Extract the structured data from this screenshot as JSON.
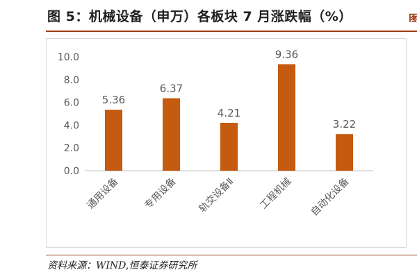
{
  "figure": {
    "title": "图 5：机械设备（申万）各板块 7 月涨跌幅（%）",
    "source": "资料来源：WIND,恒泰证券研究所"
  },
  "colors": {
    "bar": "#c55a11",
    "accent_rule": "#9e3b16",
    "axis": "#bfbfbf",
    "tick_text": "#595959"
  },
  "chart_data": {
    "type": "bar",
    "categories": [
      "通用设备",
      "专用设备",
      "轨交设备Ⅱ",
      "工程机械",
      "自动化设备"
    ],
    "values": [
      5.36,
      6.37,
      4.21,
      9.36,
      3.22
    ],
    "data_labels": [
      "5.36",
      "6.37",
      "4.21",
      "9.36",
      "3.22"
    ],
    "yticks": [
      "0.0",
      "2.0",
      "4.0",
      "6.0",
      "8.0",
      "10.0"
    ],
    "ylim": [
      0,
      10
    ],
    "grid": false,
    "legend": "none"
  }
}
